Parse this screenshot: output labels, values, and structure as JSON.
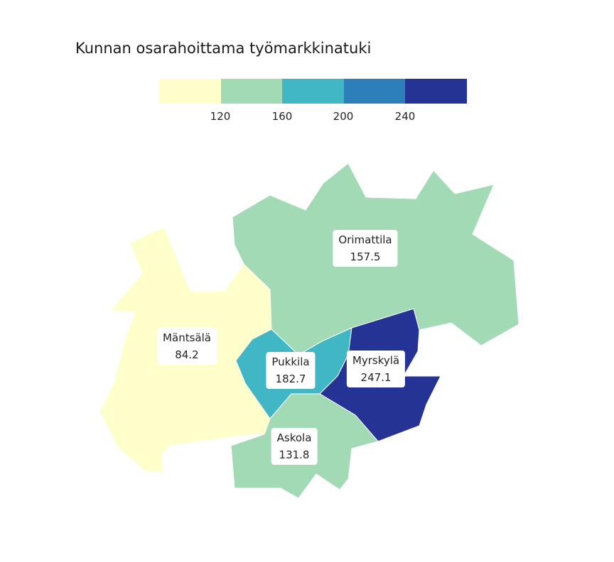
{
  "title": "Kunnan osarahoittama työmarkkinatuki",
  "legend": {
    "colors": [
      "#ffffcc",
      "#a1dab4",
      "#41b6c4",
      "#2c7fb8",
      "#253494"
    ],
    "ticks": [
      "120",
      "160",
      "200",
      "240"
    ]
  },
  "regions": [
    {
      "name": "Mäntsälä",
      "value": "84.2",
      "color": "#ffffcc"
    },
    {
      "name": "Orimattila",
      "value": "157.5",
      "color": "#a1dab4"
    },
    {
      "name": "Pukkila",
      "value": "182.7",
      "color": "#41b6c4"
    },
    {
      "name": "Myrskylä",
      "value": "247.1",
      "color": "#253494"
    },
    {
      "name": "Askola",
      "value": "131.8",
      "color": "#a1dab4"
    }
  ]
}
